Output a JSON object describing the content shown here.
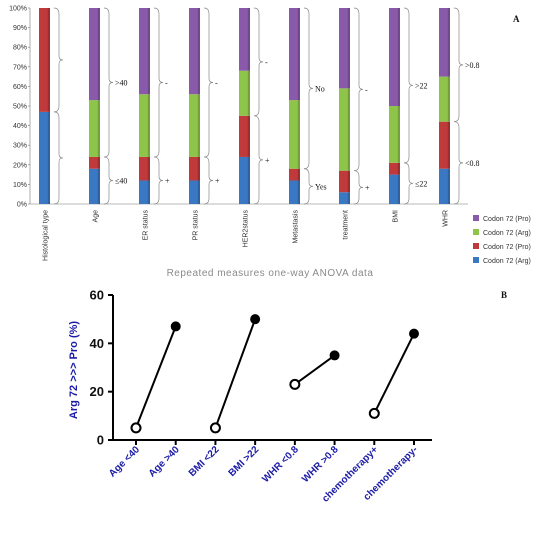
{
  "chart_data": [
    {
      "panel": "A",
      "type": "bar",
      "stacked": true,
      "caption": "Repeated measures one-way ANOVA data",
      "yaxis": {
        "min": 0,
        "max": 100,
        "ticks": [
          "0%",
          "10%",
          "20%",
          "30%",
          "40%",
          "50%",
          "60%",
          "70%",
          "80%",
          "90%",
          "100%"
        ]
      },
      "categories": [
        "Histological type",
        "Age",
        "ER status",
        "PR status",
        "HER2status",
        "Metastasis",
        "treatment",
        "BMI",
        "WHR"
      ],
      "series": [
        {
          "name": "Codon 72 (Arg)",
          "color": "#3b78c3",
          "values": [
            47,
            18,
            12,
            12,
            24,
            12,
            6,
            15,
            18
          ]
        },
        {
          "name": "Codon 72 (Pro)",
          "color": "#c0393b",
          "values": [
            53,
            6,
            12,
            12,
            21,
            6,
            11,
            6,
            24
          ]
        },
        {
          "name": "Codon 72 (Arg)",
          "color": "#8ec44a",
          "values": [
            0,
            29,
            32,
            32,
            23,
            35,
            42,
            29,
            23
          ]
        },
        {
          "name": "Codon 72 (Pro)",
          "color": "#8a5aaa",
          "values": [
            0,
            47,
            44,
            44,
            32,
            47,
            41,
            50,
            35
          ]
        }
      ],
      "legend_order": [
        3,
        2,
        1,
        0
      ],
      "annotations": [
        {
          "category": 1,
          "upper": ">40",
          "lower": "≤40"
        },
        {
          "category": 2,
          "upper": "-",
          "lower": "+"
        },
        {
          "category": 3,
          "upper": "-",
          "lower": "+"
        },
        {
          "category": 4,
          "upper": "-",
          "lower": "+"
        },
        {
          "category": 5,
          "upper": "No",
          "lower": "Yes"
        },
        {
          "category": 6,
          "upper": "-",
          "lower": "+"
        },
        {
          "category": 7,
          "upper": ">22",
          "lower": "≤22"
        },
        {
          "category": 8,
          "upper": ">0.8",
          "lower": "<0.8"
        }
      ]
    },
    {
      "panel": "B",
      "type": "line",
      "ylabel": "Arg 72 >>> Pro (%)",
      "yaxis": {
        "min": 0,
        "max": 60,
        "ticks": [
          0,
          20,
          40,
          60
        ]
      },
      "categories": [
        "Age <40",
        "Age >40",
        "BMI <22",
        "BMI >22",
        "WHR <0.8",
        "WHR >0.8",
        "chemotherapy+",
        "chemotherapy-"
      ],
      "pairs": [
        {
          "from": 0,
          "to": 1,
          "values": [
            5,
            47
          ]
        },
        {
          "from": 2,
          "to": 3,
          "values": [
            5,
            50
          ]
        },
        {
          "from": 4,
          "to": 5,
          "values": [
            23,
            35
          ]
        },
        {
          "from": 6,
          "to": 7,
          "values": [
            11,
            44
          ]
        }
      ]
    }
  ]
}
